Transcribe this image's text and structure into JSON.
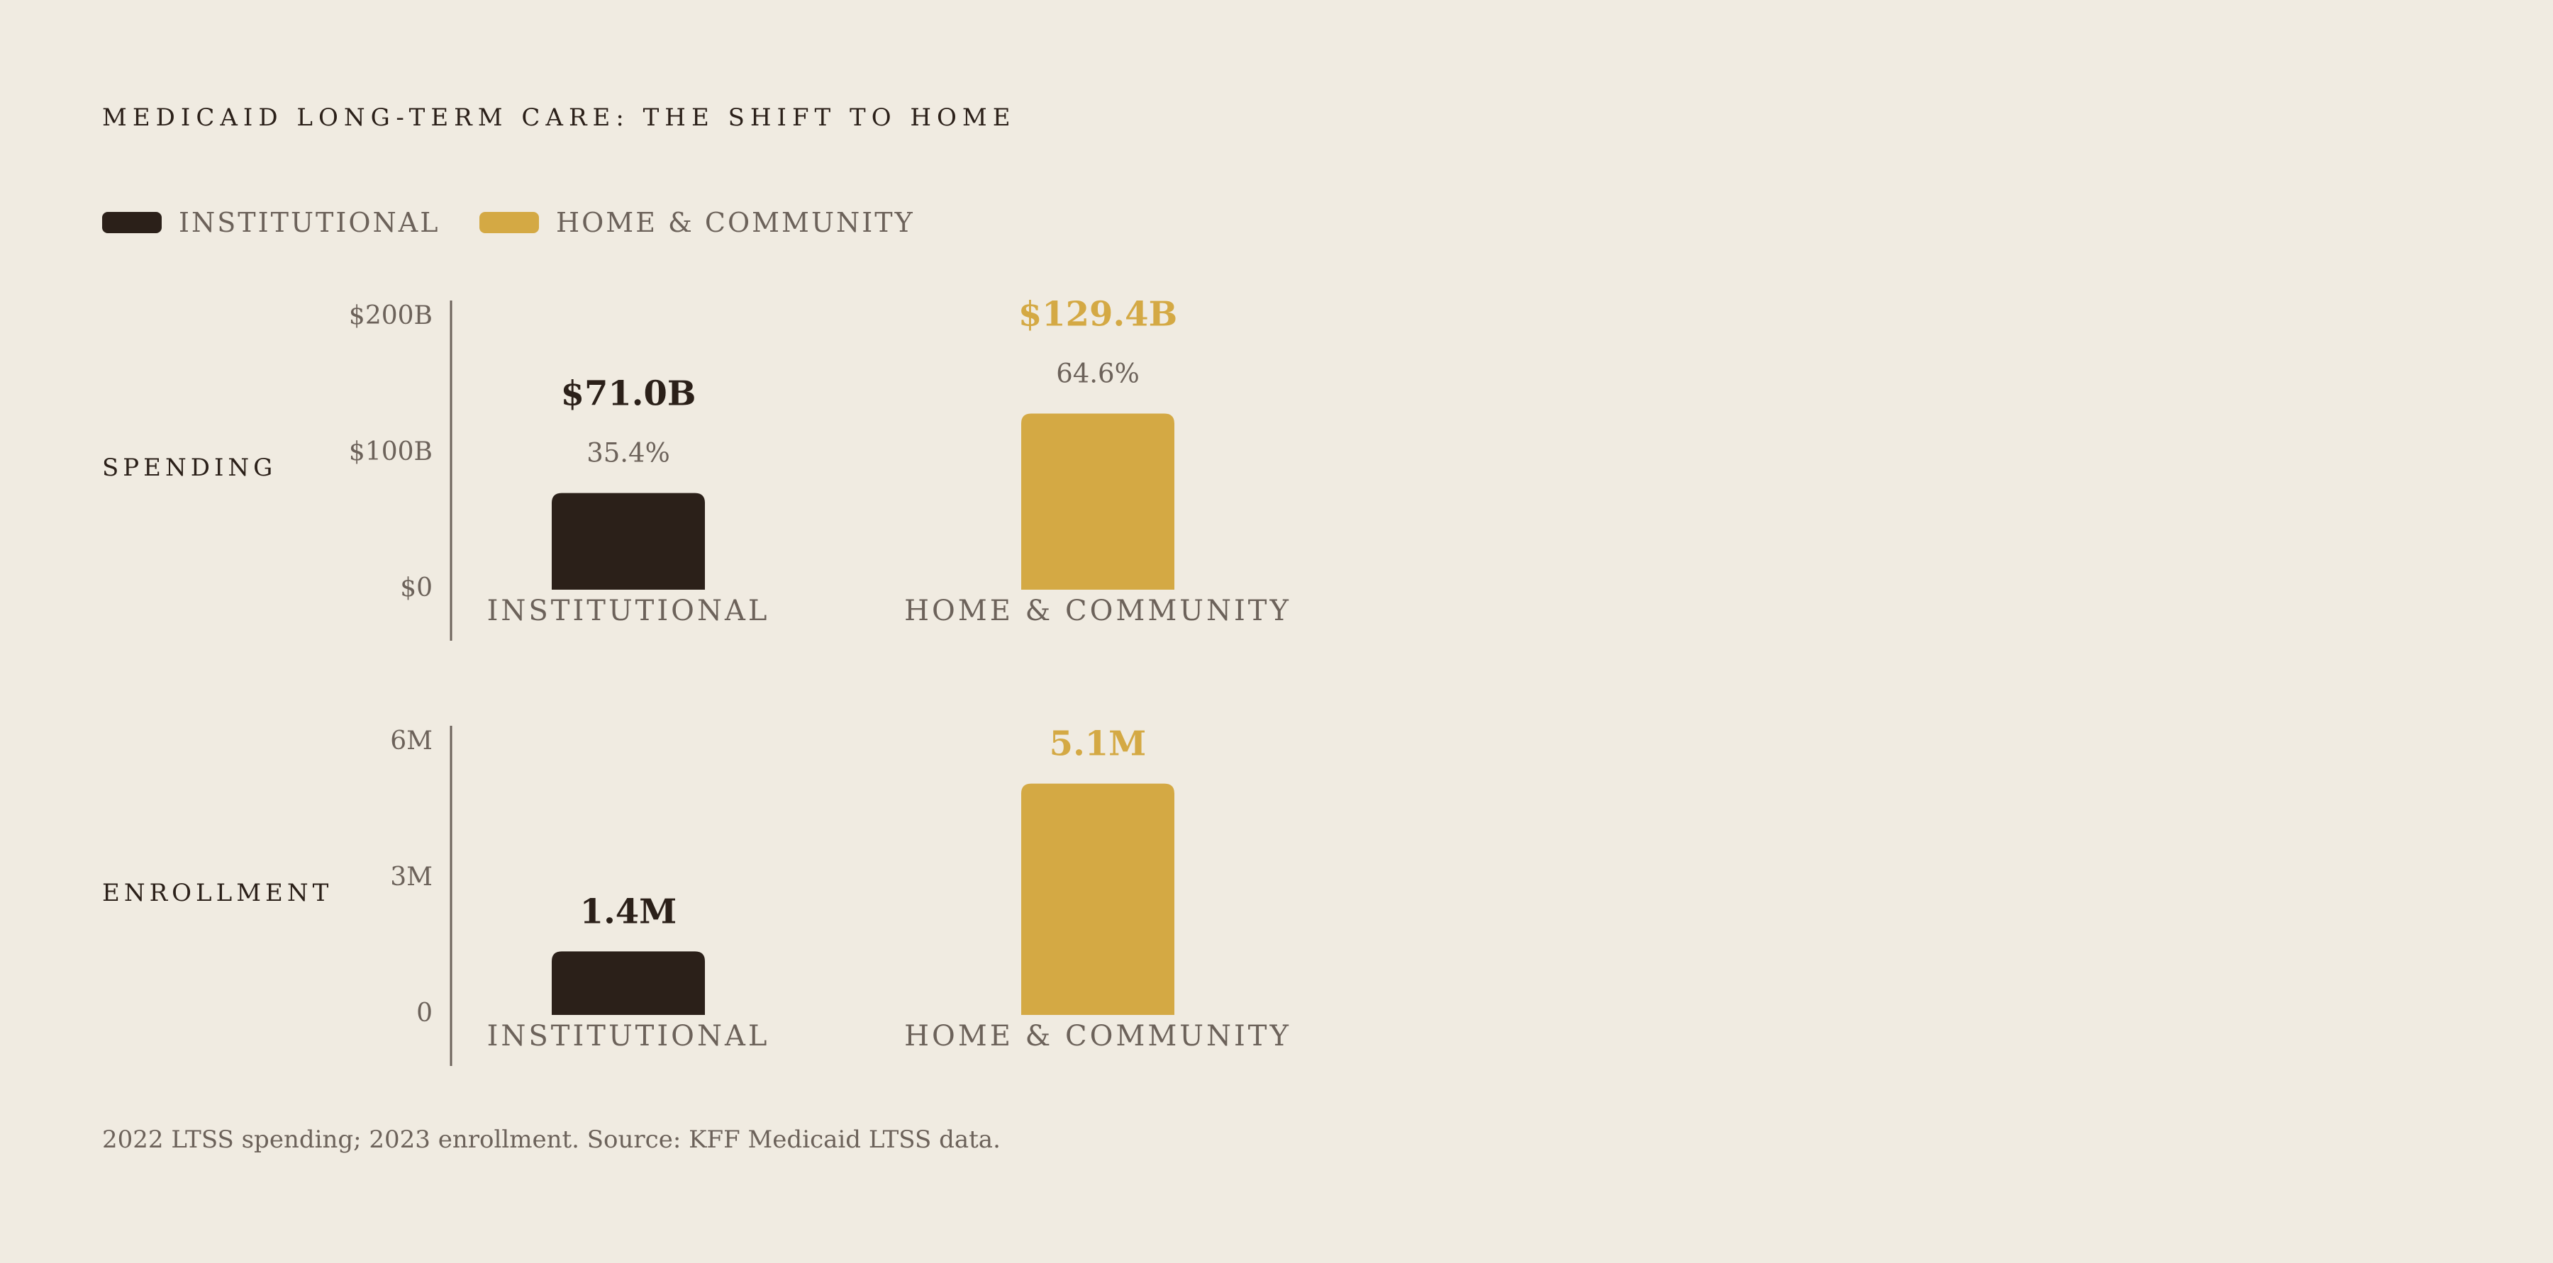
{
  "title": "MEDICAID LONG-TERM CARE: THE SHIFT TO HOME",
  "legend": [
    {
      "label": "INSTITUTIONAL",
      "color": "#2b2019"
    },
    {
      "label": "HOME & COMMUNITY",
      "color": "#d4a944"
    }
  ],
  "chart_data": [
    {
      "type": "bar",
      "title": "",
      "row_label": "SPENDING",
      "categories": [
        "INSTITUTIONAL",
        "HOME & COMMUNITY"
      ],
      "values": [
        71.0,
        129.4
      ],
      "unit": "$B",
      "value_labels": [
        "$71.0B",
        "$129.4B"
      ],
      "share_labels": [
        "35.4%",
        "64.6%"
      ],
      "ylim": [
        0,
        200
      ],
      "yticks": [
        0,
        100,
        200
      ],
      "ytick_labels": [
        "$0",
        "$100B",
        "$200B"
      ],
      "xlabel": "",
      "ylabel": "",
      "colors": [
        "#2b2019",
        "#d4a944"
      ],
      "value_label_colors": [
        "#2b2019",
        "#d4a944"
      ],
      "grid": false
    },
    {
      "type": "bar",
      "title": "",
      "row_label": "ENROLLMENT",
      "categories": [
        "INSTITUTIONAL",
        "HOME & COMMUNITY"
      ],
      "values": [
        1.4,
        5.1
      ],
      "unit": "M",
      "value_labels": [
        "1.4M",
        "5.1M"
      ],
      "share_labels": [],
      "ylim": [
        0,
        6
      ],
      "yticks": [
        0,
        3,
        6
      ],
      "ytick_labels": [
        "0",
        "3M",
        "6M"
      ],
      "xlabel": "",
      "ylabel": "",
      "colors": [
        "#2b2019",
        "#d4a944"
      ],
      "value_label_colors": [
        "#2b2019",
        "#d4a944"
      ],
      "grid": false
    }
  ],
  "footer": "2022 LTSS spending; 2023 enrollment. Source: KFF Medicaid LTSS data."
}
